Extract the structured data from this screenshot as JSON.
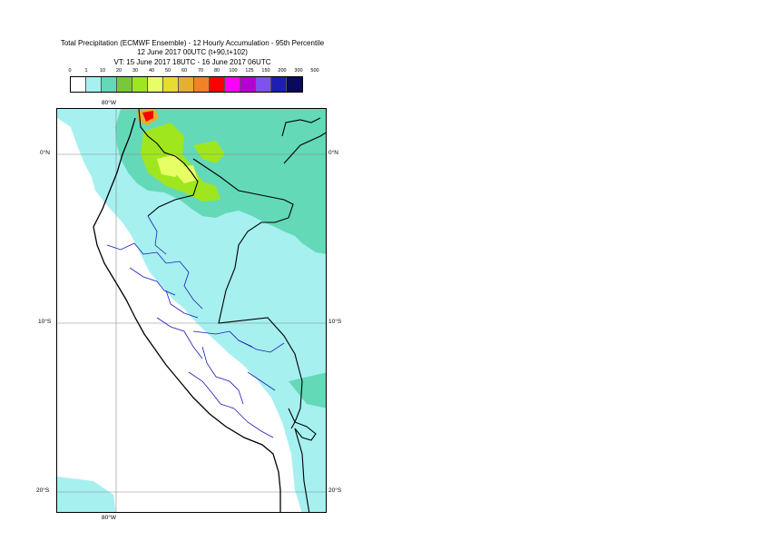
{
  "title": {
    "line1": "Total Precipitation (ECMWF Ensemble) - 12 Hourly Accumulation - 95th Percentile",
    "line2": "12 June 2017 00UTC (t+90,t+102)",
    "line3": "VT: 15 June 2017 18UTC - 16 June 2017 06UTC"
  },
  "legend": {
    "thresholds": [
      "0",
      "1",
      "10",
      "20",
      "30",
      "40",
      "50",
      "60",
      "70",
      "80",
      "100",
      "125",
      "150",
      "200",
      "300",
      "500"
    ],
    "colors": [
      "#ffffff",
      "#a6f0f0",
      "#63d9b8",
      "#78c83c",
      "#a0e61e",
      "#e6ff64",
      "#e6dc32",
      "#e6af2d",
      "#f08228",
      "#fa0000",
      "#ff00ff",
      "#b400d2",
      "#7d52f0",
      "#1e1eb4",
      "#0a0a5a"
    ]
  },
  "map_labels": {
    "lon_top": "80°W",
    "lon_bottom": "80°W",
    "lat_0_left": "0°N",
    "lat_0_right": "0°N",
    "lat_10_left": "10°S",
    "lat_10_right": "10°S",
    "lat_20_left": "20°S",
    "lat_20_right": "20°S"
  }
}
